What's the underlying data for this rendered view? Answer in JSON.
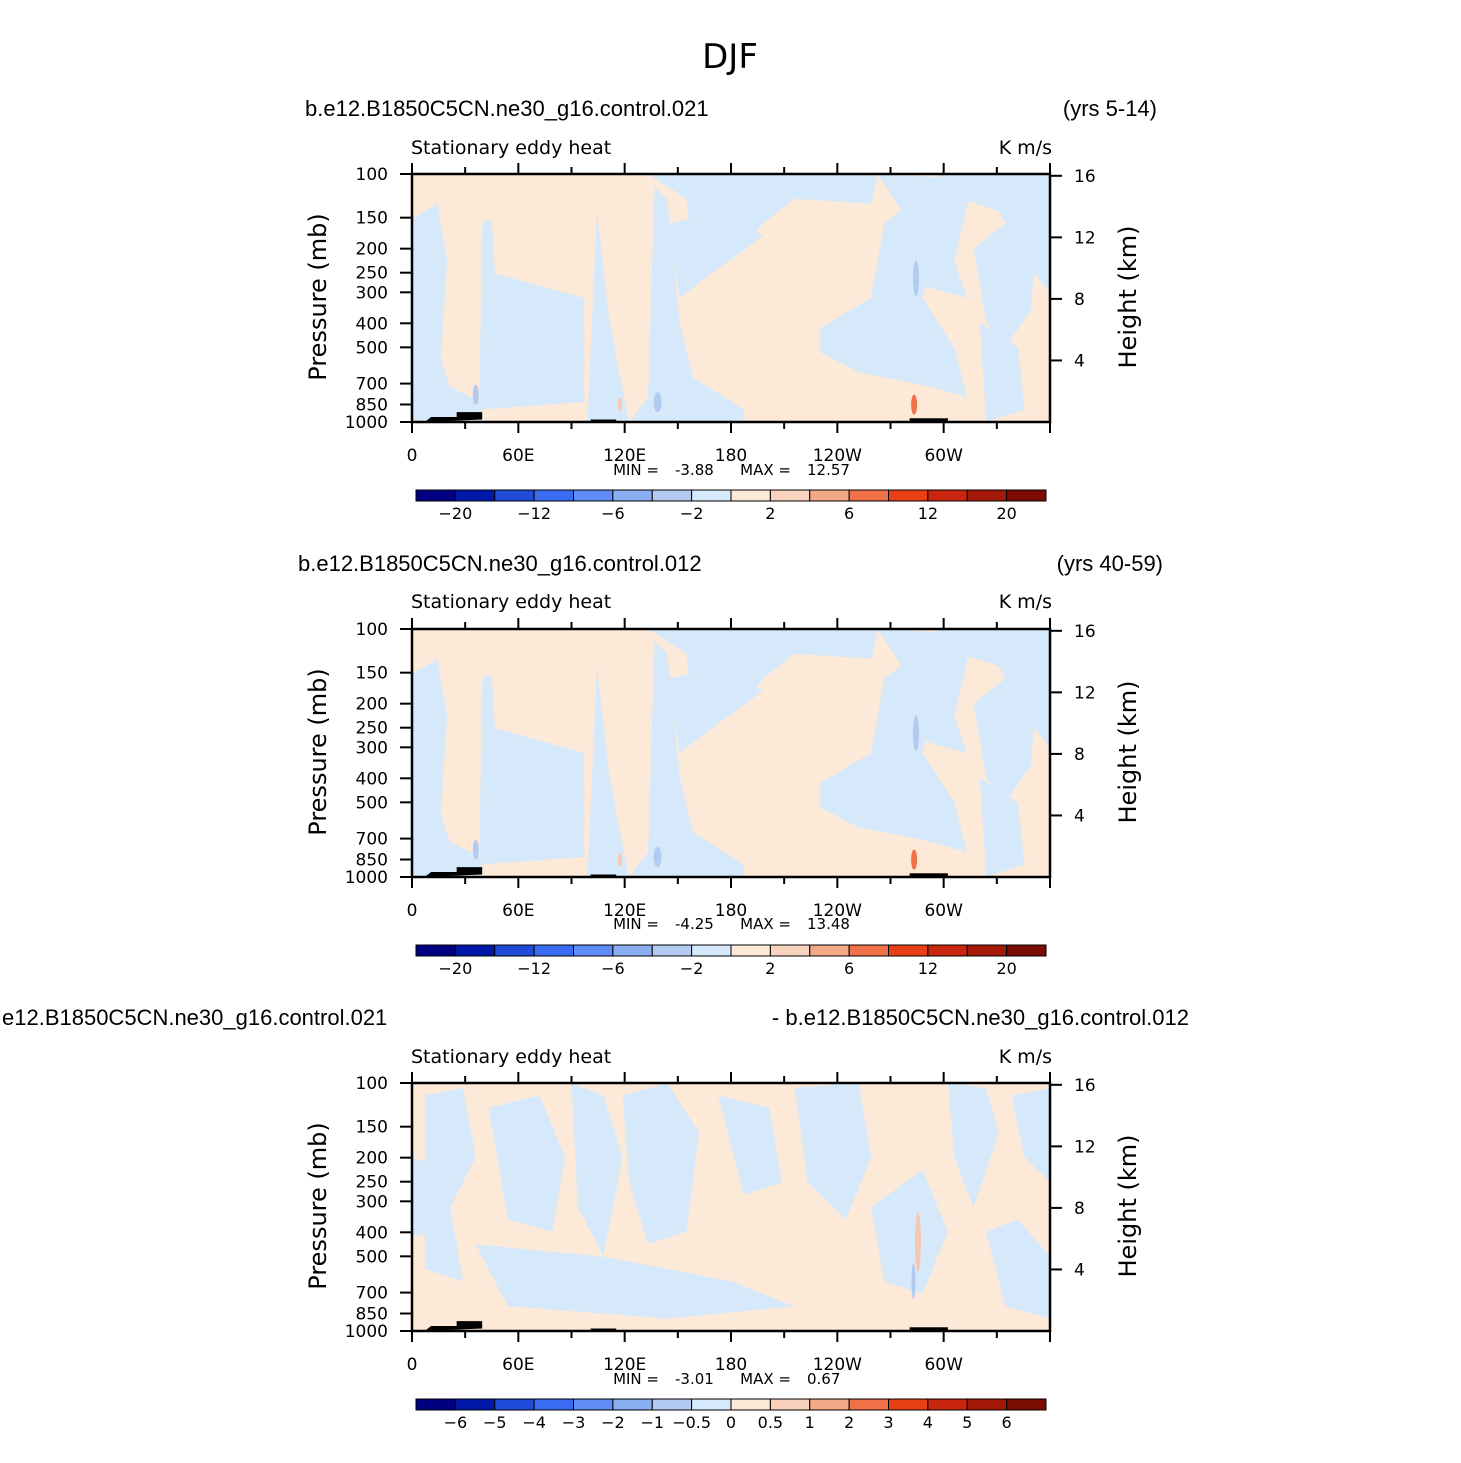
{
  "figure": {
    "title": "DJF"
  },
  "colors": {
    "pos_weak": "#fde9d8",
    "neg_weak": "#d6e9fb",
    "neg_mid": "#b3caf1",
    "pos_mid": "#f5c8b3",
    "pos_strong": "#f07048",
    "terrain": "#000000"
  },
  "chart_data": [
    {
      "type": "heatmap",
      "case_name": "b.e12.B1850C5CN.ne30_g16.control.021",
      "years": "(yrs 5-14)",
      "variable": "Stationary eddy heat",
      "units": "K m/s",
      "ylabel": "Pressure (mb)",
      "ylabel_right": "Height (km)",
      "x_ticks": [
        "0",
        "60E",
        "120E",
        "180",
        "120W",
        "60W"
      ],
      "x_range": [
        0,
        360
      ],
      "y_ticks": [
        "100",
        "150",
        "200",
        "250",
        "300",
        "400",
        "500",
        "700",
        "850",
        "1000"
      ],
      "y_range": [
        1000,
        100
      ],
      "height_ticks": [
        "16",
        "12",
        "8",
        "4"
      ],
      "min_label": "MIN =",
      "min_value": "-3.88",
      "max_label": "MAX =",
      "max_value": "12.57",
      "levels": [
        "-20",
        "-12",
        "-6",
        "-2",
        "2",
        "6",
        "12",
        "20"
      ],
      "palette": [
        "#000080",
        "#0018a8",
        "#1f4bd8",
        "#3a6cf2",
        "#5f8df5",
        "#8aaef2",
        "#b3caf1",
        "#d6e9fb",
        "#fde9d8",
        "#f9d2bd",
        "#f3a886",
        "#f07048",
        "#e84016",
        "#c8260e",
        "#a41808",
        "#7a0c04"
      ]
    },
    {
      "type": "heatmap",
      "case_name": "b.e12.B1850C5CN.ne30_g16.control.012",
      "years": "(yrs 40-59)",
      "variable": "Stationary eddy heat",
      "units": "K m/s",
      "ylabel": "Pressure (mb)",
      "ylabel_right": "Height (km)",
      "x_ticks": [
        "0",
        "60E",
        "120E",
        "180",
        "120W",
        "60W"
      ],
      "x_range": [
        0,
        360
      ],
      "y_ticks": [
        "100",
        "150",
        "200",
        "250",
        "300",
        "400",
        "500",
        "700",
        "850",
        "1000"
      ],
      "y_range": [
        1000,
        100
      ],
      "height_ticks": [
        "16",
        "12",
        "8",
        "4"
      ],
      "min_label": "MIN =",
      "min_value": "-4.25",
      "max_label": "MAX =",
      "max_value": "13.48",
      "levels": [
        "-20",
        "-12",
        "-6",
        "-2",
        "2",
        "6",
        "12",
        "20"
      ],
      "palette": [
        "#000080",
        "#0018a8",
        "#1f4bd8",
        "#3a6cf2",
        "#5f8df5",
        "#8aaef2",
        "#b3caf1",
        "#d6e9fb",
        "#fde9d8",
        "#f9d2bd",
        "#f3a886",
        "#f07048",
        "#e84016",
        "#c8260e",
        "#a41808",
        "#7a0c04"
      ]
    },
    {
      "type": "heatmap",
      "case_name_left": "e12.B1850C5CN.ne30_g16.control.021",
      "case_name_right": "- b.e12.B1850C5CN.ne30_g16.control.012",
      "variable": "Stationary eddy heat",
      "units": "K m/s",
      "ylabel": "Pressure (mb)",
      "ylabel_right": "Height (km)",
      "x_ticks": [
        "0",
        "60E",
        "120E",
        "180",
        "120W",
        "60W"
      ],
      "x_range": [
        0,
        360
      ],
      "y_ticks": [
        "100",
        "150",
        "200",
        "250",
        "300",
        "400",
        "500",
        "700",
        "850",
        "1000"
      ],
      "y_range": [
        1000,
        100
      ],
      "height_ticks": [
        "16",
        "12",
        "8",
        "4"
      ],
      "min_label": "MIN =",
      "min_value": "-3.01",
      "max_label": "MAX =",
      "max_value": "0.67",
      "levels": [
        "-6",
        "-5",
        "-4",
        "-3",
        "-2",
        "-1",
        "-0.5",
        "0",
        "0.5",
        "1",
        "2",
        "3",
        "4",
        "5",
        "6"
      ],
      "palette": [
        "#000080",
        "#0018a8",
        "#1f4bd8",
        "#3a6cf2",
        "#5f8df5",
        "#8aaef2",
        "#b3caf1",
        "#d6e9fb",
        "#fde9d8",
        "#f9d2bd",
        "#f3a886",
        "#f07048",
        "#e84016",
        "#c8260e",
        "#a41808",
        "#7a0c04"
      ]
    }
  ]
}
